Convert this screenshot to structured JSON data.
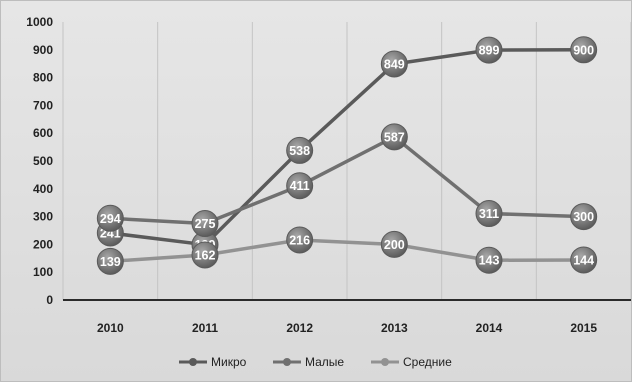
{
  "chart_data": {
    "type": "line",
    "title": "",
    "xlabel": "",
    "ylabel": "",
    "categories": [
      "2010",
      "2011",
      "2012",
      "2013",
      "2014",
      "2015"
    ],
    "ylim": [
      0,
      1000
    ],
    "y_ticks": [
      "0",
      "100",
      "200",
      "300",
      "400",
      "500",
      "600",
      "700",
      "800",
      "900",
      "1000"
    ],
    "grid": "vertical",
    "legend_position": "bottom",
    "series": [
      {
        "name": "Микро",
        "values": [
          241,
          199,
          538,
          849,
          899,
          900
        ],
        "color": "#5a5a5a"
      },
      {
        "name": "Малые",
        "values": [
          294,
          275,
          411,
          587,
          311,
          300
        ],
        "color": "#707070"
      },
      {
        "name": "Средние",
        "values": [
          139,
          162,
          216,
          200,
          143,
          144
        ],
        "color": "#929292"
      }
    ]
  }
}
